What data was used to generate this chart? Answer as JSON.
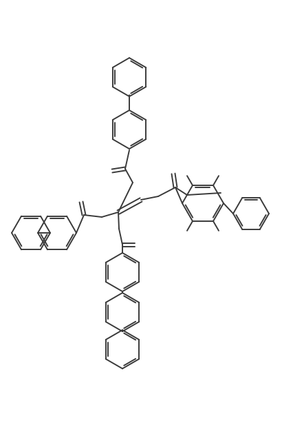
{
  "bg_color": "#ffffff",
  "line_color": "#3a3a3a",
  "lw": 1.4,
  "figw": 4.27,
  "figh": 6.27,
  "dpi": 100
}
